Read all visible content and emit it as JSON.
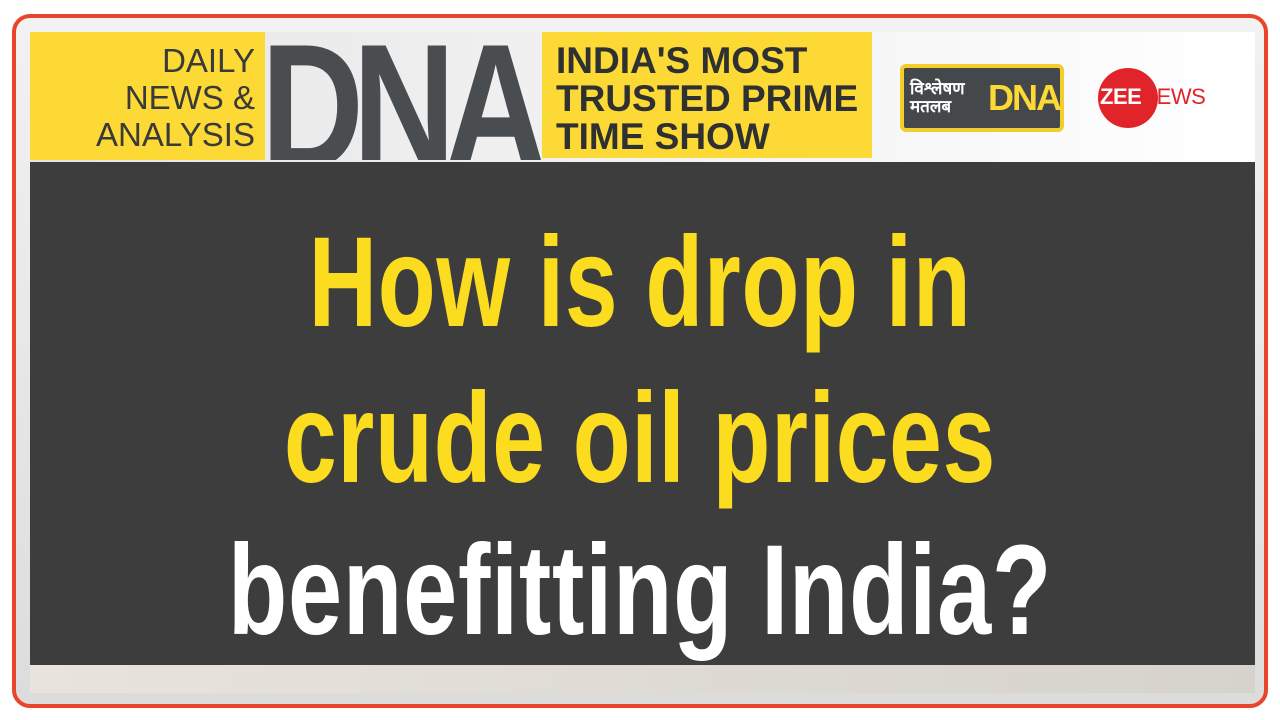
{
  "header": {
    "tagline_lines": [
      "DAILY",
      "NEWS &",
      "ANALYSIS"
    ],
    "show_logo": "DNA",
    "slogan_lines": [
      "INDIA'S MOST",
      "TRUSTED PRIME",
      "TIME SHOW"
    ],
    "segment_logo": {
      "hindi_lines": [
        "विश्लेषण",
        "मतलब"
      ],
      "dna": "DNA"
    },
    "channel_logo": {
      "zee": "ZEE",
      "news": "NEWS"
    }
  },
  "headline": {
    "lines": [
      "How is drop in",
      "crude oil prices",
      "benefitting India?"
    ]
  },
  "colors": {
    "accent_yellow": "#fcd934",
    "border_red": "#e8452a",
    "panel_dark": "#3d3d3d",
    "zee_red": "#e0242a"
  }
}
